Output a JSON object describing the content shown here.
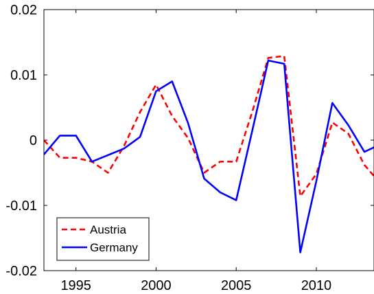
{
  "chart_data": {
    "type": "line",
    "title": "",
    "xlabel": "",
    "ylabel": "",
    "xlim": [
      1993,
      2013.6
    ],
    "ylim": [
      -0.02,
      0.02
    ],
    "xticks": [
      1995,
      2000,
      2005,
      2010
    ],
    "xtick_labels": [
      "1995",
      "2000",
      "2005",
      "2010"
    ],
    "yticks": [
      -0.02,
      -0.01,
      0,
      0.01,
      0.02
    ],
    "ytick_labels": [
      "-0.02",
      "-0.01",
      "0",
      "0.01",
      "0.02"
    ],
    "grid": false,
    "legend_position": "bottom-left",
    "series": [
      {
        "name": "Austria",
        "color": "#ff0000",
        "dash": "dashed",
        "x": [
          1993,
          1994,
          1995,
          1996,
          1997,
          1998,
          1999,
          2000,
          2001,
          2002,
          2003,
          2004,
          2005,
          2006,
          2007,
          2008,
          2009,
          2010,
          2011,
          2012,
          2013,
          2013.6
        ],
        "values": [
          0.0,
          -0.0027,
          -0.0027,
          -0.0033,
          -0.005,
          -0.0009,
          0.0043,
          0.0085,
          0.0037,
          0.0003,
          -0.005,
          -0.0033,
          -0.0033,
          0.0043,
          0.0126,
          0.0129,
          -0.0086,
          -0.0052,
          0.0027,
          0.001,
          -0.0038,
          -0.0055
        ]
      },
      {
        "name": "Germany",
        "color": "#0000ff",
        "dash": "solid",
        "x": [
          1993,
          1994,
          1995,
          1996,
          1997,
          1998,
          1999,
          2000,
          2001,
          2002,
          2003,
          2004,
          2005,
          2006,
          2007,
          2008,
          2009,
          2010,
          2011,
          2012,
          2013,
          2013.6
        ],
        "values": [
          -0.0022,
          0.0007,
          0.0007,
          -0.0033,
          -0.0023,
          -0.0013,
          0.0005,
          0.0075,
          0.009,
          0.0026,
          -0.0059,
          -0.008,
          -0.0092,
          0.0014,
          0.0122,
          0.0117,
          -0.0172,
          -0.0063,
          0.0057,
          0.0023,
          -0.0018,
          -0.0011
        ]
      }
    ]
  }
}
